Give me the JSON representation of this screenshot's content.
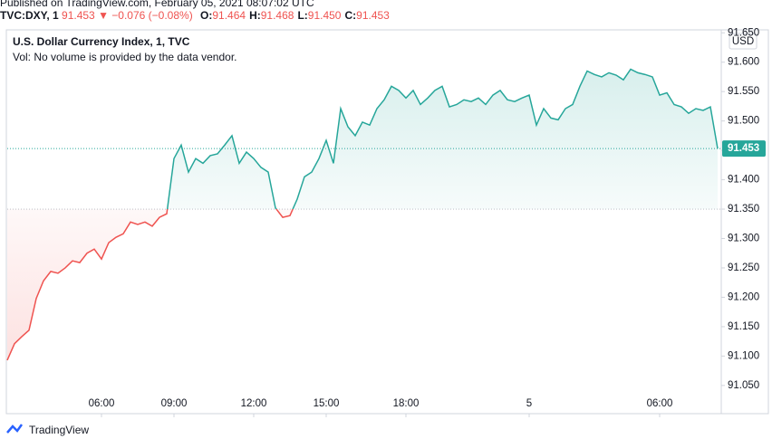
{
  "chart_data": {
    "type": "baseline",
    "published": "Published on TradingView.com, February 05, 2021 08:07:02 UTC",
    "symbol": "TVC:DXY, 1",
    "price": "91.453",
    "change": "▼ −0.076 (−0.08%)",
    "ohlc": [
      {
        "key": "O:",
        "value": "91.464"
      },
      {
        "key": "H:",
        "value": "91.468"
      },
      {
        "key": "L:",
        "value": "91.450"
      },
      {
        "key": "C:",
        "value": "91.453"
      }
    ],
    "title": "U.S. Dollar Currency Index, 1, TVC",
    "subtitle": "Vol: No volume is provided by the data vendor.",
    "currency": "USD",
    "brand": "TradingView",
    "baseline": 91.35,
    "up_color": "#26a69a",
    "down_color": "#ef5350",
    "categories": [
      null,
      null,
      null,
      null,
      null,
      null,
      null,
      null,
      null,
      null,
      null,
      null,
      null,
      "06:00",
      null,
      null,
      null,
      null,
      null,
      null,
      null,
      null,
      null,
      "09:00",
      null,
      null,
      null,
      null,
      null,
      null,
      null,
      null,
      null,
      null,
      "12:00",
      null,
      null,
      null,
      null,
      null,
      null,
      null,
      null,
      null,
      "15:00",
      null,
      null,
      null,
      null,
      null,
      null,
      null,
      null,
      null,
      null,
      "18:00",
      null,
      null,
      null,
      null,
      null,
      null,
      null,
      null,
      null,
      null,
      null,
      null,
      null,
      null,
      null,
      null,
      "5",
      null,
      null,
      null,
      null,
      null,
      null,
      null,
      null,
      null,
      null,
      null,
      null,
      null,
      null,
      null,
      null,
      null,
      "06:00",
      null,
      null,
      null,
      null,
      null,
      null,
      null,
      null
    ],
    "series": [
      {
        "name": "TVC:DXY",
        "values": [
          91.093,
          91.121,
          91.133,
          91.144,
          91.198,
          91.228,
          91.244,
          91.241,
          91.25,
          91.262,
          91.259,
          91.275,
          91.282,
          91.265,
          91.293,
          91.302,
          91.308,
          91.328,
          91.324,
          91.328,
          91.321,
          91.336,
          91.342,
          91.436,
          91.459,
          91.413,
          91.436,
          91.428,
          91.441,
          91.444,
          91.459,
          91.475,
          91.428,
          91.447,
          91.436,
          91.421,
          91.413,
          91.352,
          91.336,
          91.339,
          91.367,
          91.405,
          91.413,
          91.436,
          91.467,
          91.428,
          91.521,
          91.49,
          91.475,
          91.498,
          91.493,
          91.521,
          91.536,
          91.559,
          91.552,
          91.539,
          91.552,
          91.528,
          91.539,
          91.552,
          91.559,
          91.524,
          91.528,
          91.536,
          91.533,
          91.539,
          91.528,
          91.544,
          91.552,
          91.536,
          91.533,
          91.539,
          91.544,
          91.493,
          91.521,
          91.505,
          91.502,
          91.521,
          91.528,
          91.559,
          91.585,
          91.579,
          91.575,
          91.582,
          91.578,
          91.57,
          91.588,
          91.582,
          91.579,
          91.575,
          91.544,
          91.548,
          91.528,
          91.524,
          91.513,
          91.521,
          91.518,
          91.524,
          91.453
        ]
      }
    ],
    "ylim": [
      91.002,
      91.655
    ],
    "yticks": [
      {
        "value": 91.05,
        "label": "91.050"
      },
      {
        "value": 91.1,
        "label": "91.100"
      },
      {
        "value": 91.15,
        "label": "91.150"
      },
      {
        "value": 91.2,
        "label": "91.200"
      },
      {
        "value": 91.25,
        "label": "91.250"
      },
      {
        "value": 91.3,
        "label": "91.300"
      },
      {
        "value": 91.35,
        "label": "91.350"
      },
      {
        "value": 91.4,
        "label": "91.400"
      },
      {
        "value": 91.45,
        "label": "91.450"
      },
      {
        "value": 91.5,
        "label": "91.500"
      },
      {
        "value": 91.55,
        "label": "91.550"
      },
      {
        "value": 91.6,
        "label": "91.600"
      },
      {
        "value": 91.65,
        "label": "91.650"
      }
    ]
  }
}
